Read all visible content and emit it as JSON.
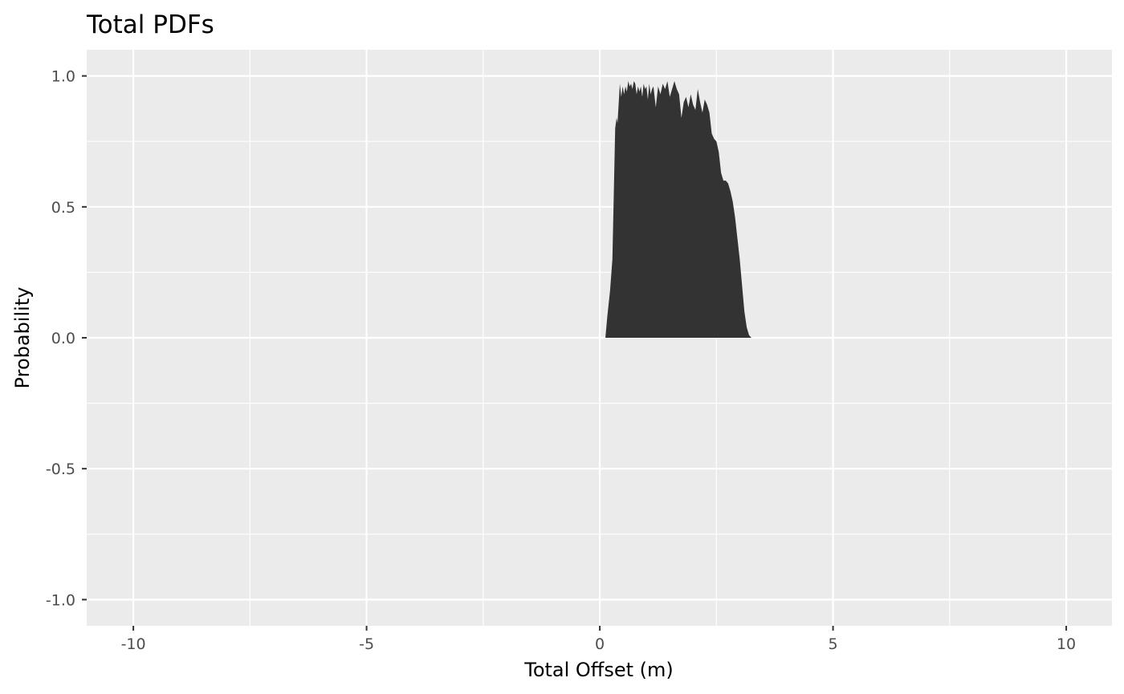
{
  "chart_data": {
    "type": "area",
    "title": "Total PDFs",
    "xlabel": "Total Offset (m)",
    "ylabel": "Probability",
    "xlim": [
      -11,
      10.98
    ],
    "ylim": [
      -1.1,
      1.1
    ],
    "x_ticks": [
      -10,
      -5,
      0,
      5,
      10
    ],
    "y_ticks": [
      -1.0,
      -0.5,
      0.0,
      0.5,
      1.0
    ],
    "x_tick_labels": [
      "-10",
      "-5",
      "0",
      "5",
      "10"
    ],
    "y_tick_labels": [
      "-1.0",
      "-0.5",
      "0.0",
      "0.5",
      "1.0"
    ],
    "grid": true,
    "legend": "none",
    "colors": {
      "panel": "#ebebeb",
      "grid": "#ffffff",
      "fill": "#333333"
    },
    "series": [
      {
        "x": [
          0.12,
          0.16,
          0.22,
          0.27,
          0.3,
          0.33,
          0.36,
          0.38,
          0.4,
          0.43,
          0.46,
          0.49,
          0.52,
          0.55,
          0.58,
          0.61,
          0.64,
          0.67,
          0.7,
          0.73,
          0.76,
          0.79,
          0.82,
          0.85,
          0.88,
          0.91,
          0.94,
          0.97,
          1.0,
          1.03,
          1.06,
          1.09,
          1.12,
          1.15,
          1.2,
          1.25,
          1.3,
          1.35,
          1.4,
          1.45,
          1.5,
          1.55,
          1.6,
          1.65,
          1.7,
          1.75,
          1.8,
          1.85,
          1.9,
          1.95,
          2.0,
          2.05,
          2.1,
          2.15,
          2.2,
          2.25,
          2.3,
          2.35,
          2.4,
          2.45,
          2.5,
          2.55,
          2.6,
          2.65,
          2.7,
          2.75,
          2.8,
          2.85,
          2.9,
          2.95,
          3.0,
          3.05,
          3.1,
          3.15,
          3.2,
          3.25,
          3.3,
          3.35,
          3.4,
          3.45
        ],
        "y": [
          0.0,
          0.08,
          0.18,
          0.3,
          0.55,
          0.8,
          0.84,
          0.82,
          0.88,
          0.97,
          0.92,
          0.96,
          0.93,
          0.96,
          0.94,
          0.98,
          0.96,
          0.97,
          0.95,
          0.98,
          0.97,
          0.93,
          0.96,
          0.94,
          0.96,
          0.92,
          0.97,
          0.95,
          0.96,
          0.91,
          0.97,
          0.93,
          0.95,
          0.96,
          0.88,
          0.96,
          0.93,
          0.97,
          0.95,
          0.98,
          0.92,
          0.95,
          0.98,
          0.95,
          0.93,
          0.84,
          0.9,
          0.92,
          0.88,
          0.93,
          0.89,
          0.87,
          0.95,
          0.9,
          0.86,
          0.91,
          0.89,
          0.86,
          0.78,
          0.76,
          0.75,
          0.71,
          0.63,
          0.6,
          0.6,
          0.59,
          0.56,
          0.52,
          0.46,
          0.38,
          0.3,
          0.2,
          0.1,
          0.04,
          0.01,
          0.0,
          0.0,
          0.0,
          0.0,
          0.0
        ]
      }
    ]
  }
}
